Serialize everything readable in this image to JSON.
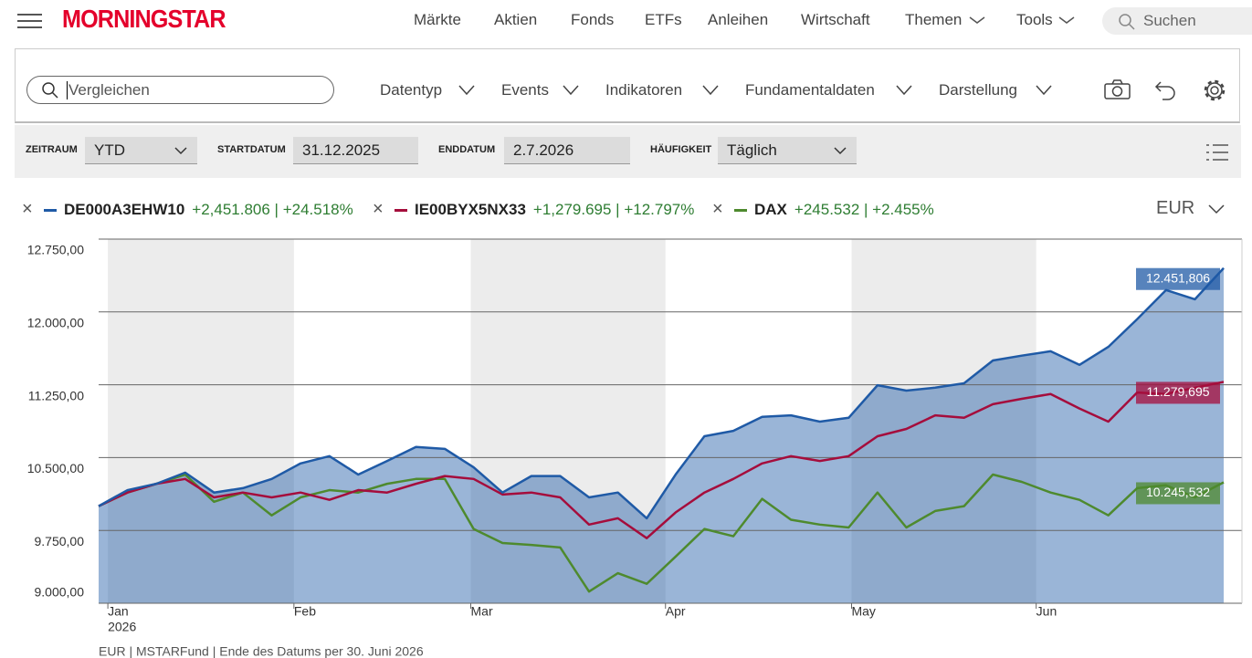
{
  "header": {
    "logo": "MORNINGSTAR",
    "nav": [
      "Märkte",
      "Aktien",
      "Fonds",
      "ETFs",
      "Anleihen",
      "Wirtschaft",
      "Themen",
      "Tools"
    ],
    "search": "Suchen"
  },
  "toolbar": {
    "compare": "Vergleichen",
    "menus": [
      "Datentyp",
      "Events",
      "Indikatoren",
      "Fundamentaldaten",
      "Darstellung"
    ]
  },
  "filters": [
    {
      "label": "ZEITRAUM",
      "value": "YTD"
    },
    {
      "label": "STARTDATUM",
      "value": "31.12.2025"
    },
    {
      "label": "ENDDATUM",
      "value": "2.7.2026"
    },
    {
      "label": "HÄUFIGKEIT",
      "value": "Täglich"
    }
  ],
  "currency": "EUR",
  "chart_data": {
    "type": "line",
    "series": [
      {
        "name": "DE000A3EHW10",
        "change": "+2,451.806 | +24.518%",
        "color": "#1f5aa6",
        "area": true,
        "values": [
          10000,
          10165,
          10230,
          10345,
          10140,
          10185,
          10280,
          10440,
          10515,
          10325,
          10465,
          10610,
          10590,
          10400,
          10140,
          10310,
          10310,
          10090,
          10140,
          9875,
          10325,
          10720,
          10775,
          10920,
          10935,
          10870,
          10910,
          11245,
          11190,
          11220,
          11265,
          11500,
          11550,
          11595,
          11455,
          11640,
          11925,
          12225,
          12130,
          12451.806
        ],
        "value_labels": [
          null,
          null,
          null,
          null,
          null,
          null,
          null,
          null,
          null,
          null,
          null,
          null,
          null,
          null,
          null,
          null,
          null,
          null,
          null,
          null,
          null,
          null,
          null,
          null,
          null,
          null,
          null,
          null,
          null,
          null,
          null,
          null,
          null,
          null,
          null,
          null,
          null,
          null,
          null,
          "12.451,806"
        ]
      },
      {
        "name": "IE00BYX5NX33",
        "change": "+1,279.695 | +12.797%",
        "color": "#a50d3c",
        "area": false,
        "values": [
          10000,
          10140,
          10230,
          10280,
          10090,
          10140,
          10090,
          10140,
          10065,
          10165,
          10140,
          10230,
          10310,
          10280,
          10120,
          10140,
          10090,
          9810,
          9875,
          9670,
          9935,
          10140,
          10280,
          10440,
          10515,
          10465,
          10515,
          10720,
          10795,
          10935,
          10910,
          11050,
          11105,
          11155,
          11005,
          10870,
          11170,
          11155,
          11220,
          11279.695
        ],
        "value_labels": [
          null,
          null,
          null,
          null,
          null,
          null,
          null,
          null,
          null,
          null,
          null,
          null,
          null,
          null,
          null,
          null,
          null,
          null,
          null,
          null,
          null,
          null,
          null,
          null,
          null,
          null,
          null,
          null,
          null,
          null,
          null,
          null,
          null,
          null,
          null,
          null,
          null,
          null,
          null,
          "11.279,695"
        ]
      },
      {
        "name": "DAX",
        "change": "+245.532 | +2.455%",
        "color": "#4e8a2e",
        "area": false,
        "values": [
          10000,
          10140,
          10230,
          10325,
          10045,
          10140,
          9905,
          10090,
          10165,
          10140,
          10230,
          10280,
          10280,
          9765,
          9620,
          9600,
          9575,
          9120,
          9310,
          9200,
          9480,
          9765,
          9690,
          10075,
          9860,
          9810,
          9780,
          10140,
          9780,
          9950,
          10000,
          10325,
          10250,
          10140,
          10065,
          9905,
          10185,
          10215,
          10090,
          10245.532
        ],
        "value_labels": [
          null,
          null,
          null,
          null,
          null,
          null,
          null,
          null,
          null,
          null,
          null,
          null,
          null,
          null,
          null,
          null,
          null,
          null,
          null,
          null,
          null,
          null,
          null,
          null,
          null,
          null,
          null,
          null,
          null,
          null,
          null,
          null,
          null,
          null,
          null,
          null,
          null,
          null,
          null,
          "10.245,532"
        ]
      }
    ],
    "xlim": [
      0,
      39
    ],
    "xticks": [
      {
        "value": 0.32,
        "label": "Jan"
      },
      {
        "value": 6.77,
        "label": "Feb"
      },
      {
        "value": 12.9,
        "label": "Mar"
      },
      {
        "value": 19.65,
        "label": "Apr"
      },
      {
        "value": 26.1,
        "label": "May"
      },
      {
        "value": 32.5,
        "label": "Jun"
      }
    ],
    "x_year": "2026",
    "ylim": [
      9000,
      12750
    ],
    "yticks": [
      {
        "value": 9000,
        "label": "9.000,00"
      },
      {
        "value": 9750,
        "label": "9.750,00"
      },
      {
        "value": 10500,
        "label": "10.500,00"
      },
      {
        "value": 11250,
        "label": "11.250,00"
      },
      {
        "value": 12000,
        "label": "12.000,00"
      },
      {
        "value": 12750,
        "label": "12.750,00"
      }
    ],
    "grid": true,
    "footnote": "EUR | MSTARFund | Ende des Datums per 30. Juni 2026"
  }
}
